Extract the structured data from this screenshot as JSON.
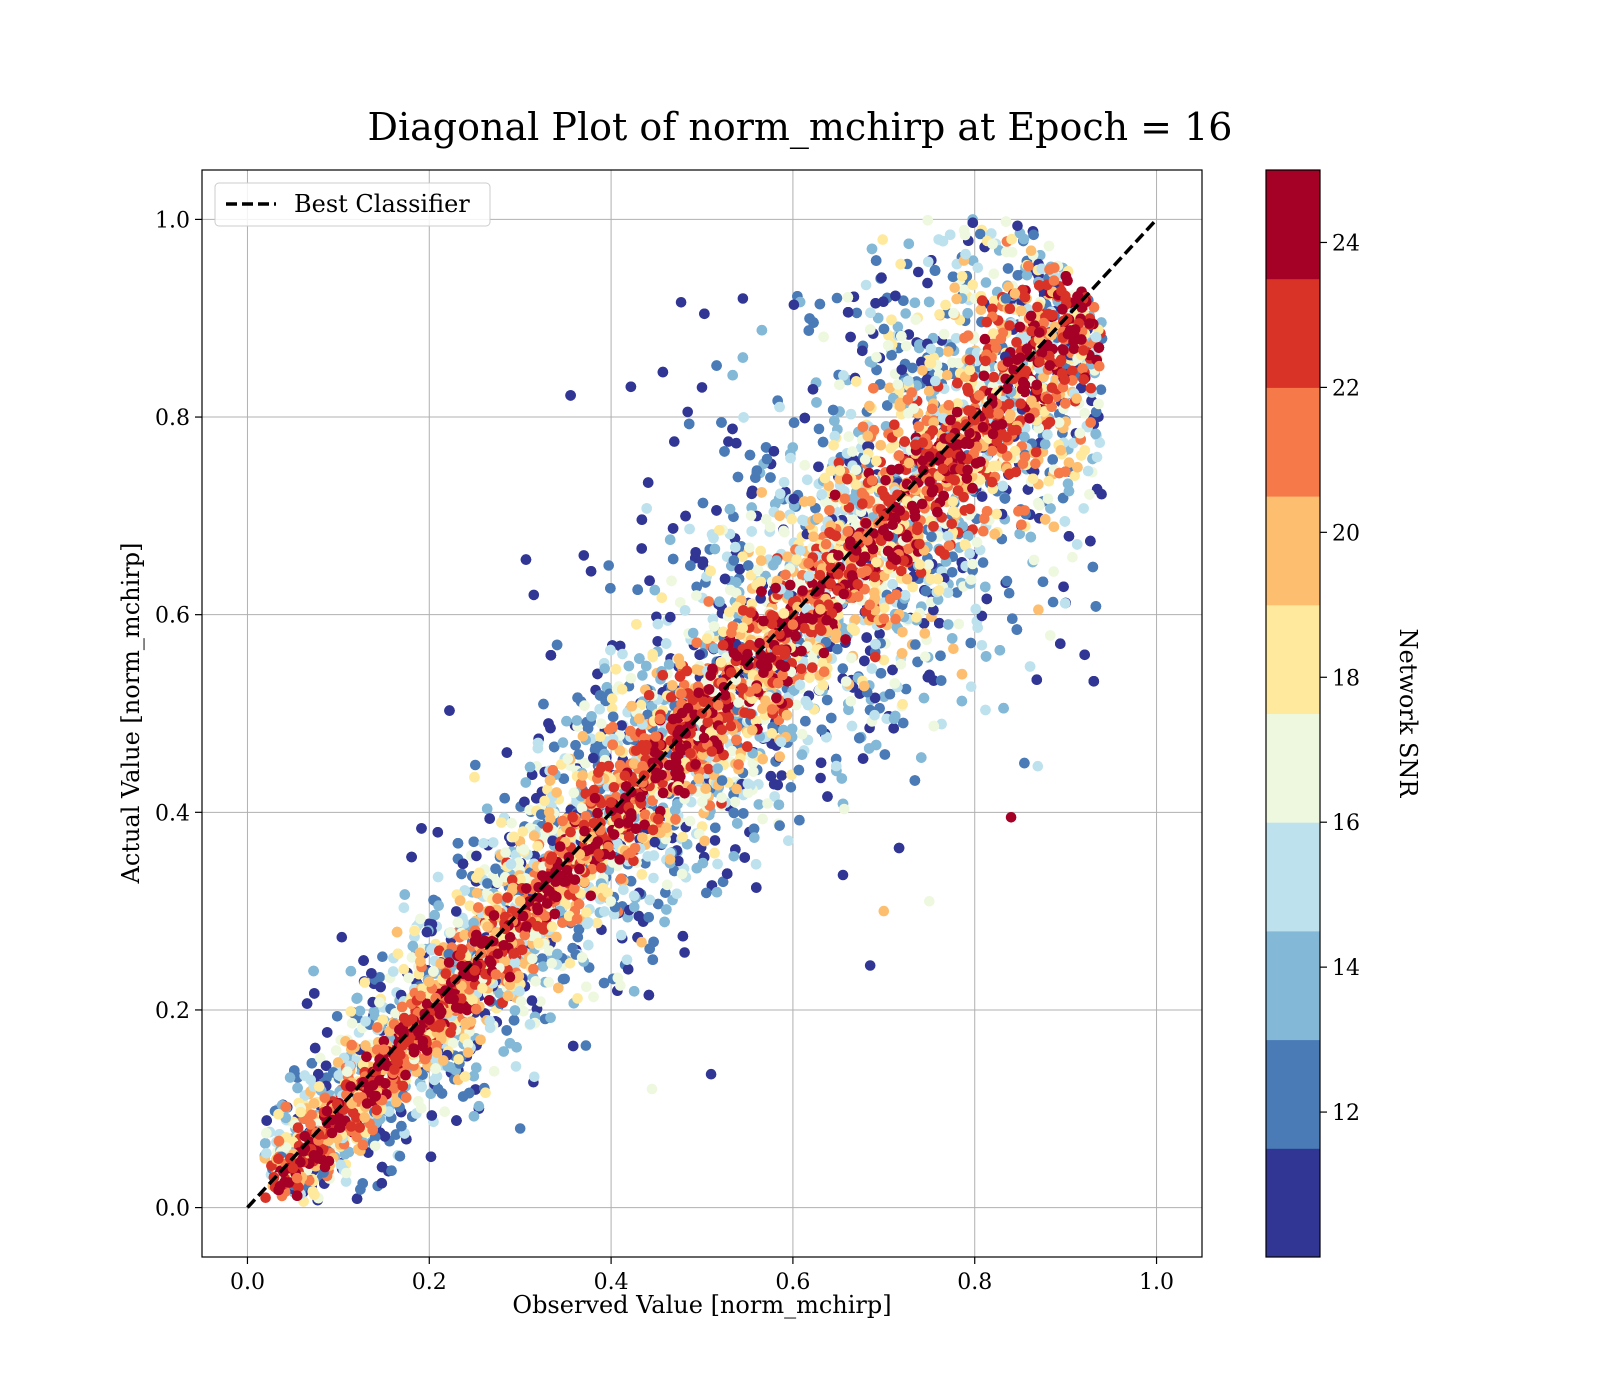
{
  "chart_data": {
    "type": "scatter",
    "title": "Diagonal Plot of norm_mchirp at Epoch = 16",
    "xlabel": "Observed Value [norm_mchirp]",
    "ylabel": "Actual Value [norm_mchirp]",
    "xlim": [
      -0.05,
      1.05
    ],
    "ylim": [
      -0.05,
      1.05
    ],
    "xticks": [
      "0.0",
      "0.2",
      "0.4",
      "0.6",
      "0.8",
      "1.0"
    ],
    "yticks": [
      "0.0",
      "0.2",
      "0.4",
      "0.6",
      "0.8",
      "1.0"
    ],
    "grid": true,
    "legend": {
      "position": "top-left",
      "entries": [
        {
          "label": "Best Classifier",
          "style": "dashed",
          "color": "#000000"
        }
      ]
    },
    "reference_line": {
      "name": "Best Classifier",
      "x": [
        0.0,
        1.0
      ],
      "y": [
        0.0,
        1.0
      ]
    },
    "colorbar": {
      "label": "Network SNR",
      "range": [
        10,
        25
      ],
      "boundaries": [
        10,
        11.5,
        13,
        14.5,
        16,
        17.5,
        19,
        20.5,
        22,
        23.5,
        25
      ],
      "tick_values": [
        12,
        14,
        16,
        18,
        20,
        22,
        24
      ],
      "tick_labels": [
        "12",
        "14",
        "16",
        "18",
        "20",
        "22",
        "24"
      ],
      "colors": [
        "#313695",
        "#4a7bb7",
        "#83b8d7",
        "#bde2ee",
        "#eef8df",
        "#fee99d",
        "#fdbf6f",
        "#f67a49",
        "#d93328",
        "#a50026"
      ]
    },
    "series": [
      {
        "points_note_count": 12000,
        "points": [
          [
            0.02,
            0.01,
            23
          ],
          [
            0.05,
            0.04,
            22
          ],
          [
            0.1,
            0.09,
            24
          ],
          [
            0.15,
            0.16,
            21
          ],
          [
            0.2,
            0.19,
            24
          ],
          [
            0.25,
            0.24,
            23
          ],
          [
            0.3,
            0.31,
            20
          ],
          [
            0.35,
            0.33,
            24
          ],
          [
            0.4,
            0.41,
            22
          ],
          [
            0.45,
            0.44,
            24
          ],
          [
            0.5,
            0.5,
            23
          ],
          [
            0.55,
            0.56,
            24
          ],
          [
            0.6,
            0.59,
            21
          ],
          [
            0.65,
            0.66,
            24
          ],
          [
            0.7,
            0.7,
            22
          ],
          [
            0.75,
            0.76,
            24
          ],
          [
            0.8,
            0.8,
            23
          ],
          [
            0.85,
            0.86,
            24
          ],
          [
            0.9,
            0.92,
            22
          ],
          [
            0.545,
            0.92,
            11
          ],
          [
            0.5,
            0.83,
            11
          ],
          [
            0.315,
            0.62,
            11
          ],
          [
            0.37,
            0.66,
            11
          ],
          [
            0.84,
            0.395,
            24
          ],
          [
            0.685,
            0.245,
            11
          ],
          [
            0.51,
            0.135,
            11
          ],
          [
            0.3,
            0.08,
            12
          ],
          [
            0.75,
            0.31,
            17
          ],
          [
            0.7,
            0.3,
            20
          ],
          [
            0.445,
            0.12,
            17
          ],
          [
            0.87,
            0.605,
            19
          ]
        ]
      }
    ]
  }
}
